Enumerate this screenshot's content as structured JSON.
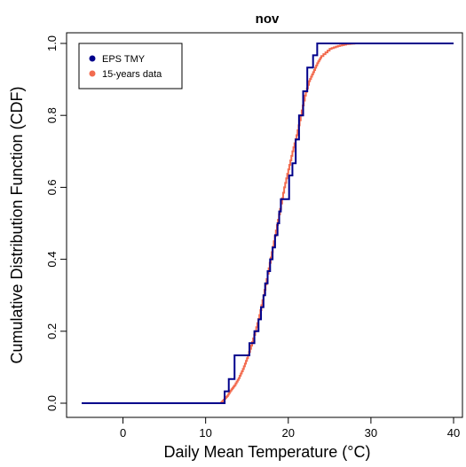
{
  "chart_data": {
    "type": "line",
    "title": "nov",
    "xlabel": "Daily Mean Temperature (°C)",
    "ylabel": "Cumulative Distribution Function (CDF)",
    "xlim": [
      -5,
      40
    ],
    "ylim": [
      0,
      1
    ],
    "x_ticks": [
      0,
      10,
      20,
      30,
      40
    ],
    "y_ticks": [
      0.0,
      0.2,
      0.4,
      0.6,
      0.8,
      1.0
    ],
    "x_tick_labels": [
      "0",
      "10",
      "20",
      "30",
      "40"
    ],
    "y_tick_labels": [
      "0.0",
      "0.2",
      "0.4",
      "0.6",
      "0.8",
      "1.0"
    ],
    "grid": false,
    "legend_position": "top-left",
    "series": [
      {
        "name": "EPS TMY",
        "color": "#00008B",
        "style": "step",
        "points": [
          [
            -5,
            0.0
          ],
          [
            12.3,
            0.0
          ],
          [
            12.3,
            0.033
          ],
          [
            12.8,
            0.033
          ],
          [
            12.8,
            0.067
          ],
          [
            13.5,
            0.067
          ],
          [
            13.5,
            0.133
          ],
          [
            15.3,
            0.133
          ],
          [
            15.3,
            0.167
          ],
          [
            15.9,
            0.167
          ],
          [
            15.9,
            0.2
          ],
          [
            16.4,
            0.2
          ],
          [
            16.4,
            0.233
          ],
          [
            16.7,
            0.233
          ],
          [
            16.7,
            0.267
          ],
          [
            17.0,
            0.267
          ],
          [
            17.0,
            0.3
          ],
          [
            17.2,
            0.3
          ],
          [
            17.2,
            0.333
          ],
          [
            17.5,
            0.333
          ],
          [
            17.5,
            0.367
          ],
          [
            17.8,
            0.367
          ],
          [
            17.8,
            0.4
          ],
          [
            18.1,
            0.4
          ],
          [
            18.1,
            0.433
          ],
          [
            18.4,
            0.433
          ],
          [
            18.4,
            0.467
          ],
          [
            18.7,
            0.467
          ],
          [
            18.7,
            0.5
          ],
          [
            18.9,
            0.5
          ],
          [
            18.9,
            0.533
          ],
          [
            19.1,
            0.533
          ],
          [
            19.1,
            0.567
          ],
          [
            20.1,
            0.567
          ],
          [
            20.1,
            0.633
          ],
          [
            20.5,
            0.633
          ],
          [
            20.5,
            0.667
          ],
          [
            20.9,
            0.667
          ],
          [
            20.9,
            0.733
          ],
          [
            21.3,
            0.733
          ],
          [
            21.3,
            0.8
          ],
          [
            21.8,
            0.8
          ],
          [
            21.8,
            0.867
          ],
          [
            22.3,
            0.867
          ],
          [
            22.3,
            0.933
          ],
          [
            23.0,
            0.933
          ],
          [
            23.0,
            0.967
          ],
          [
            23.5,
            0.967
          ],
          [
            23.5,
            1.0
          ],
          [
            40,
            1.0
          ]
        ]
      },
      {
        "name": "15-years data",
        "color": "#F26B4F",
        "style": "step-fine",
        "points": [
          [
            -5,
            0.0
          ],
          [
            11.8,
            0.0
          ],
          [
            12.2,
            0.01
          ],
          [
            12.6,
            0.02
          ],
          [
            13.0,
            0.035
          ],
          [
            13.5,
            0.05
          ],
          [
            14.0,
            0.07
          ],
          [
            14.5,
            0.095
          ],
          [
            15.0,
            0.125
          ],
          [
            15.5,
            0.16
          ],
          [
            16.0,
            0.2
          ],
          [
            16.5,
            0.245
          ],
          [
            17.0,
            0.3
          ],
          [
            17.5,
            0.36
          ],
          [
            18.0,
            0.42
          ],
          [
            18.5,
            0.48
          ],
          [
            19.0,
            0.54
          ],
          [
            19.5,
            0.6
          ],
          [
            20.0,
            0.65
          ],
          [
            20.5,
            0.7
          ],
          [
            21.0,
            0.745
          ],
          [
            21.5,
            0.8
          ],
          [
            22.0,
            0.855
          ],
          [
            22.5,
            0.895
          ],
          [
            23.0,
            0.92
          ],
          [
            23.5,
            0.945
          ],
          [
            24.0,
            0.965
          ],
          [
            25.0,
            0.985
          ],
          [
            26.0,
            0.993
          ],
          [
            27.0,
            0.998
          ],
          [
            28.0,
            1.0
          ],
          [
            40,
            1.0
          ]
        ]
      }
    ]
  }
}
